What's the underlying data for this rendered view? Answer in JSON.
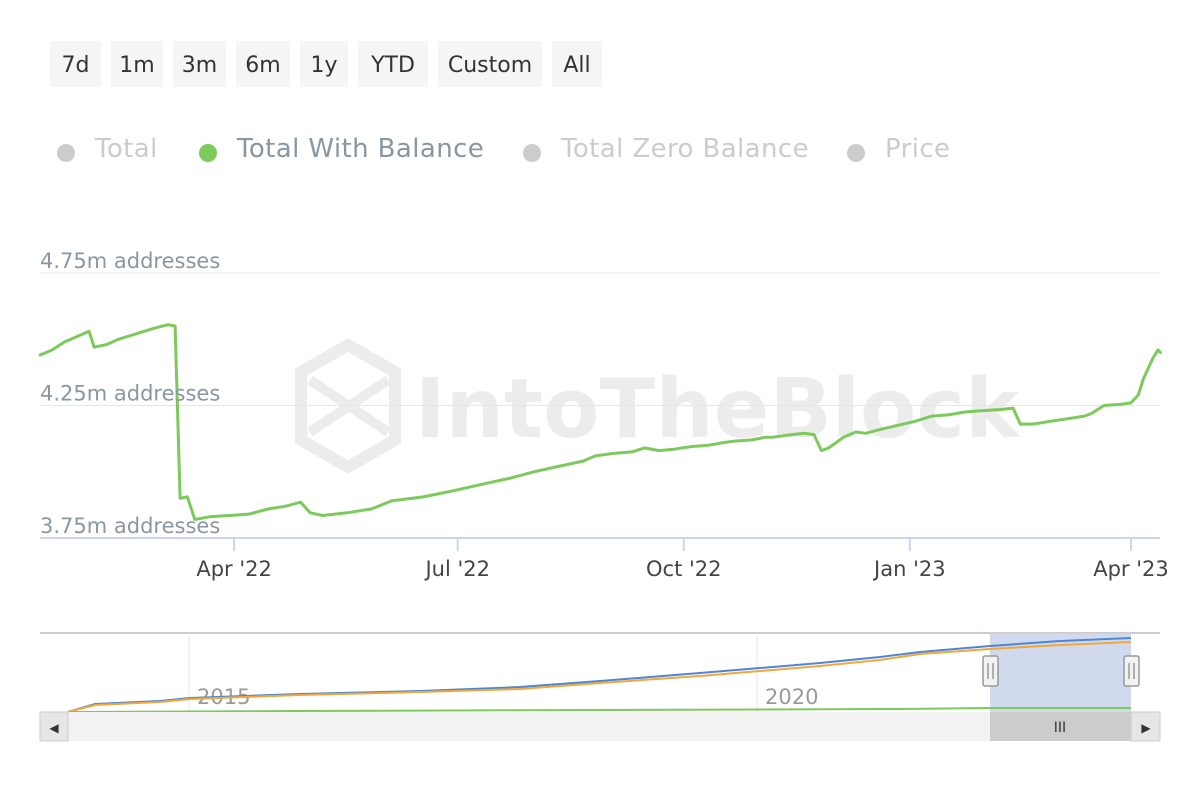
{
  "range_selector": {
    "buttons": [
      "7d",
      "1m",
      "3m",
      "6m",
      "1y",
      "YTD",
      "Custom",
      "All"
    ]
  },
  "legend": {
    "items": [
      {
        "label": "Total",
        "active": false,
        "color": "#cccccc"
      },
      {
        "label": "Total With Balance",
        "active": true,
        "color": "#7cc95c"
      },
      {
        "label": "Total Zero Balance",
        "active": false,
        "color": "#cccccc"
      },
      {
        "label": "Price",
        "active": false,
        "color": "#cccccc"
      }
    ]
  },
  "watermark": "IntoTheBlock",
  "navigator": {
    "labels": [
      {
        "text": "2015",
        "x": 2015
      },
      {
        "text": "2020",
        "x": 2020
      }
    ],
    "scroll_grip": "III",
    "left_arrow": "◀",
    "right_arrow": "▶",
    "selection_color": "#c9d4ea"
  },
  "chart_data": {
    "type": "line",
    "title": "",
    "xlabel": "",
    "ylabel": "",
    "y_unit": "addresses",
    "ylim": [
      3750000,
      4750000
    ],
    "y_ticks": [
      {
        "value": 3750000,
        "label": "3.75m addresses"
      },
      {
        "value": 4250000,
        "label": "4.25m addresses"
      },
      {
        "value": 4750000,
        "label": "4.75m addresses"
      }
    ],
    "x_ticks": [
      {
        "date": "2022-04-01",
        "label": "Apr '22"
      },
      {
        "date": "2022-07-01",
        "label": "Jul '22"
      },
      {
        "date": "2022-10-01",
        "label": "Oct '22"
      },
      {
        "date": "2023-01-01",
        "label": "Jan '23"
      },
      {
        "date": "2023-04-01",
        "label": "Apr '23"
      }
    ],
    "xlim": [
      "2022-01-12",
      "2023-04-12"
    ],
    "grid": true,
    "legend_position": "top-left",
    "series": [
      {
        "name": "Total With Balance",
        "color": "#7cc95c",
        "points": [
          [
            "2022-01-12",
            4440000
          ],
          [
            "2022-01-17",
            4460000
          ],
          [
            "2022-01-22",
            4490000
          ],
          [
            "2022-01-27",
            4510000
          ],
          [
            "2022-02-01",
            4530000
          ],
          [
            "2022-02-03",
            4470000
          ],
          [
            "2022-02-08",
            4480000
          ],
          [
            "2022-02-13",
            4500000
          ],
          [
            "2022-02-20",
            4520000
          ],
          [
            "2022-02-27",
            4540000
          ],
          [
            "2022-03-05",
            4555000
          ],
          [
            "2022-03-08",
            4550000
          ],
          [
            "2022-03-10",
            3900000
          ],
          [
            "2022-03-13",
            3905000
          ],
          [
            "2022-03-16",
            3820000
          ],
          [
            "2022-03-22",
            3830000
          ],
          [
            "2022-03-30",
            3835000
          ],
          [
            "2022-04-07",
            3840000
          ],
          [
            "2022-04-15",
            3860000
          ],
          [
            "2022-04-22",
            3870000
          ],
          [
            "2022-04-28",
            3885000
          ],
          [
            "2022-05-02",
            3845000
          ],
          [
            "2022-05-07",
            3835000
          ],
          [
            "2022-05-17",
            3845000
          ],
          [
            "2022-05-27",
            3860000
          ],
          [
            "2022-06-04",
            3890000
          ],
          [
            "2022-06-17",
            3905000
          ],
          [
            "2022-06-30",
            3930000
          ],
          [
            "2022-07-12",
            3955000
          ],
          [
            "2022-07-22",
            3975000
          ],
          [
            "2022-08-01",
            4000000
          ],
          [
            "2022-08-11",
            4020000
          ],
          [
            "2022-08-21",
            4040000
          ],
          [
            "2022-08-26",
            4060000
          ],
          [
            "2022-09-03",
            4070000
          ],
          [
            "2022-09-10",
            4075000
          ],
          [
            "2022-09-15",
            4090000
          ],
          [
            "2022-09-21",
            4080000
          ],
          [
            "2022-09-27",
            4085000
          ],
          [
            "2022-10-04",
            4095000
          ],
          [
            "2022-10-11",
            4100000
          ],
          [
            "2022-10-17",
            4110000
          ],
          [
            "2022-10-21",
            4115000
          ],
          [
            "2022-10-29",
            4120000
          ],
          [
            "2022-11-03",
            4130000
          ],
          [
            "2022-11-06",
            4130000
          ],
          [
            "2022-11-14",
            4140000
          ],
          [
            "2022-11-19",
            4145000
          ],
          [
            "2022-11-23",
            4140000
          ],
          [
            "2022-11-26",
            4080000
          ],
          [
            "2022-11-29",
            4090000
          ],
          [
            "2022-12-05",
            4130000
          ],
          [
            "2022-12-10",
            4150000
          ],
          [
            "2022-12-14",
            4145000
          ],
          [
            "2022-12-20",
            4160000
          ],
          [
            "2022-12-27",
            4175000
          ],
          [
            "2023-01-03",
            4190000
          ],
          [
            "2023-01-10",
            4210000
          ],
          [
            "2023-01-17",
            4215000
          ],
          [
            "2023-01-23",
            4225000
          ],
          [
            "2023-01-30",
            4230000
          ],
          [
            "2023-02-07",
            4235000
          ],
          [
            "2023-02-12",
            4240000
          ],
          [
            "2023-02-15",
            4180000
          ],
          [
            "2023-02-20",
            4180000
          ],
          [
            "2023-02-27",
            4190000
          ],
          [
            "2023-03-06",
            4200000
          ],
          [
            "2023-03-13",
            4210000
          ],
          [
            "2023-03-16",
            4220000
          ],
          [
            "2023-03-21",
            4250000
          ],
          [
            "2023-03-28",
            4255000
          ],
          [
            "2023-04-01",
            4260000
          ],
          [
            "2023-04-04",
            4290000
          ],
          [
            "2023-04-06",
            4350000
          ],
          [
            "2023-04-08",
            4390000
          ],
          [
            "2023-04-10",
            4430000
          ],
          [
            "2023-04-12",
            4460000
          ],
          [
            "2023-04-13",
            4450000
          ]
        ]
      }
    ]
  }
}
